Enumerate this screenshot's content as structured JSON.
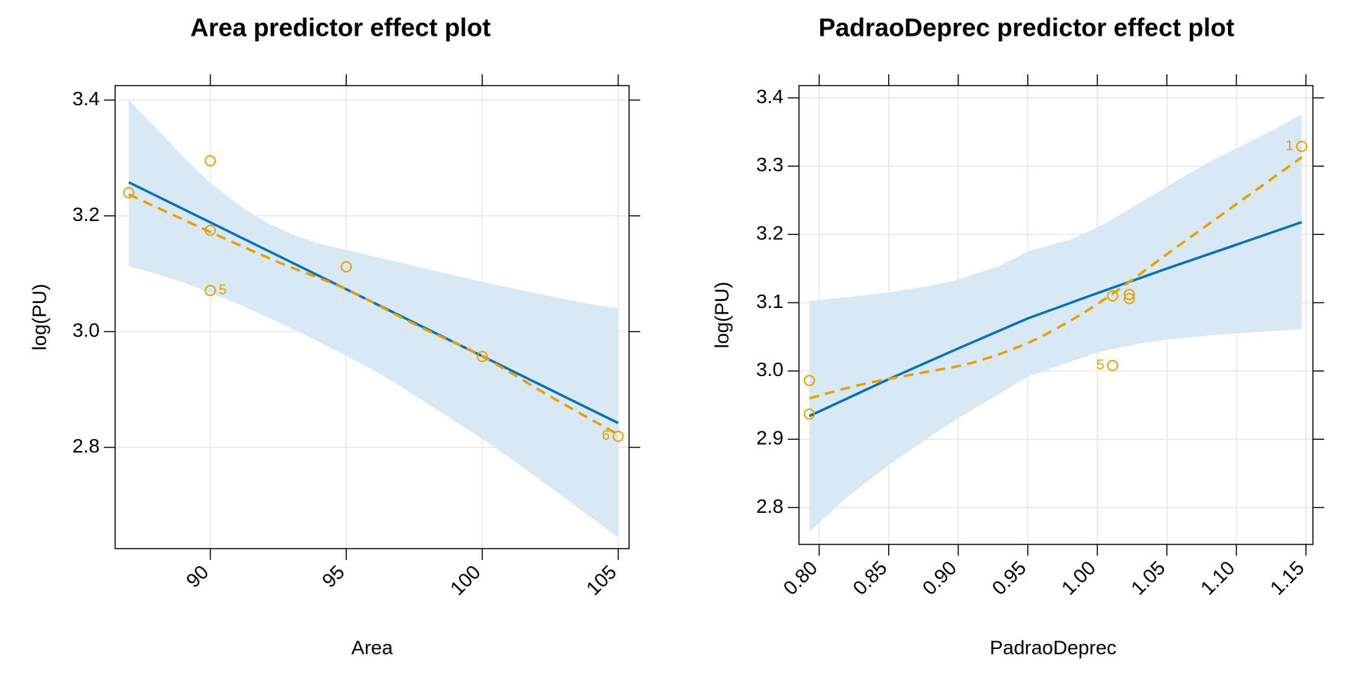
{
  "chart_data": [
    {
      "type": "line",
      "title": "Area predictor effect plot",
      "xlabel": "Area",
      "ylabel": "log(PU)",
      "xlim": [
        86.5,
        105.4
      ],
      "ylim": [
        2.625,
        3.425
      ],
      "xticks": [
        90,
        95,
        100,
        105
      ],
      "xtick_labels": [
        "90",
        "95",
        "100",
        "105"
      ],
      "yticks": [
        2.8,
        3.0,
        3.2,
        3.4
      ],
      "ytick_labels": [
        "2.8",
        "3.0",
        "3.2",
        "3.4"
      ],
      "grid": true,
      "colors": {
        "fit": "#0072B2",
        "band": "#d8e8f4",
        "points": "#E69F00",
        "grid": "#e6e6e6"
      },
      "fit": {
        "x": [
          87,
          105
        ],
        "y": [
          3.258,
          2.842
        ]
      },
      "band": {
        "x": [
          87,
          88,
          89,
          90,
          91,
          92,
          93,
          94,
          95,
          96,
          97,
          98,
          99,
          100,
          101,
          102,
          103,
          104,
          105
        ],
        "lower": [
          3.113,
          3.1,
          3.085,
          3.067,
          3.048,
          3.027,
          3.005,
          2.982,
          2.958,
          2.933,
          2.905,
          2.875,
          2.845,
          2.815,
          2.782,
          2.748,
          2.714,
          2.679,
          2.644
        ],
        "upper": [
          3.4,
          3.352,
          3.302,
          3.257,
          3.22,
          3.19,
          3.168,
          3.152,
          3.141,
          3.13,
          3.119,
          3.108,
          3.097,
          3.086,
          3.076,
          3.066,
          3.056,
          3.047,
          3.04
        ]
      },
      "smooth": {
        "x": [
          87,
          90,
          92.5,
          95,
          97.5,
          100,
          102.5,
          105
        ],
        "y": [
          3.237,
          3.172,
          3.12,
          3.073,
          3.013,
          2.957,
          2.888,
          2.822
        ]
      },
      "points": [
        {
          "x": 87,
          "y": 3.24,
          "label": ""
        },
        {
          "x": 90,
          "y": 3.295,
          "label": ""
        },
        {
          "x": 90,
          "y": 3.175,
          "label": ""
        },
        {
          "x": 90,
          "y": 3.071,
          "label": "5"
        },
        {
          "x": 95,
          "y": 3.112,
          "label": ""
        },
        {
          "x": 100,
          "y": 2.957,
          "label": ""
        },
        {
          "x": 105,
          "y": 2.819,
          "label": "6"
        }
      ]
    },
    {
      "type": "line",
      "title": "PadraoDeprec predictor effect plot",
      "xlabel": "PadraoDeprec",
      "ylabel": "log(PU)",
      "xlim": [
        0.7855,
        1.155
      ],
      "ylim": [
        2.746,
        3.418
      ],
      "xticks": [
        0.8,
        0.85,
        0.9,
        0.95,
        1.0,
        1.05,
        1.1,
        1.15
      ],
      "xtick_labels": [
        "0.80",
        "0.85",
        "0.90",
        "0.95",
        "1.00",
        "1.05",
        "1.10",
        "1.15"
      ],
      "yticks": [
        2.8,
        2.9,
        3.0,
        3.1,
        3.2,
        3.3,
        3.4
      ],
      "ytick_labels": [
        "2.8",
        "2.9",
        "3.0",
        "3.1",
        "3.2",
        "3.3",
        "3.4"
      ],
      "grid": true,
      "colors": {
        "fit": "#0072B2",
        "band": "#d8e8f4",
        "points": "#E69F00",
        "grid": "#e6e6e6"
      },
      "fit": {
        "x": [
          0.793,
          0.85,
          0.9,
          0.95,
          1.0,
          1.05,
          1.1,
          1.147
        ],
        "y": [
          2.934,
          2.988,
          3.033,
          3.077,
          3.114,
          3.15,
          3.185,
          3.218
        ]
      },
      "band": {
        "x": [
          0.793,
          0.82,
          0.85,
          0.88,
          0.9,
          0.93,
          0.95,
          0.98,
          1.0,
          1.03,
          1.05,
          1.08,
          1.1,
          1.13,
          1.147
        ],
        "lower": [
          2.764,
          2.815,
          2.862,
          2.904,
          2.931,
          2.967,
          2.992,
          3.013,
          3.027,
          3.04,
          3.046,
          3.052,
          3.055,
          3.059,
          3.061
        ],
        "upper": [
          3.103,
          3.108,
          3.115,
          3.125,
          3.134,
          3.154,
          3.175,
          3.192,
          3.21,
          3.245,
          3.27,
          3.306,
          3.326,
          3.357,
          3.376
        ]
      },
      "smooth": {
        "x": [
          0.793,
          0.83,
          0.87,
          0.91,
          0.95,
          0.98,
          1.0,
          1.02,
          1.05,
          1.08,
          1.11,
          1.147
        ],
        "y": [
          2.96,
          2.98,
          2.996,
          3.012,
          3.041,
          3.073,
          3.098,
          3.126,
          3.171,
          3.215,
          3.259,
          3.313
        ]
      },
      "points": [
        {
          "x": 0.793,
          "y": 2.986,
          "label": ""
        },
        {
          "x": 0.793,
          "y": 2.937,
          "label": ""
        },
        {
          "x": 1.011,
          "y": 3.11,
          "label": ""
        },
        {
          "x": 1.023,
          "y": 3.112,
          "label": ""
        },
        {
          "x": 1.023,
          "y": 3.106,
          "label": ""
        },
        {
          "x": 1.011,
          "y": 3.008,
          "label": "5"
        },
        {
          "x": 1.147,
          "y": 3.329,
          "label": "1"
        }
      ]
    }
  ]
}
